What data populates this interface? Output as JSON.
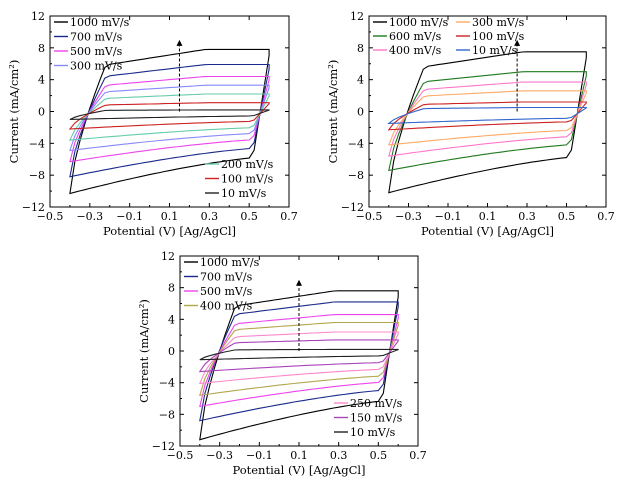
{
  "chart_data": [
    {
      "type": "line",
      "title": "",
      "xlabel": "Potential (V) [Ag/AgCl]",
      "ylabel": "Current (mA/cm²)",
      "xlim": [
        -0.5,
        0.7
      ],
      "ylim": [
        -12,
        12
      ],
      "x_ticks": [
        "−0.5",
        "−0.3",
        "−0.1",
        "0.1",
        "0.3",
        "0.5",
        "0.7"
      ],
      "y_ticks": [
        "12",
        "8",
        "4",
        "0",
        "−4",
        "−8",
        "−12"
      ],
      "grid": false,
      "legend_top": [
        "1000 mV/s",
        "700 mV/s",
        "500 mV/s",
        "300 mV/s"
      ],
      "legend_bottom": [
        "200 mV/s",
        "100 mV/s",
        "10 mV/s"
      ],
      "arrow": {
        "x": 0.15,
        "y_from": 0,
        "y_to": 9
      },
      "series": [
        {
          "name": "1000 mV/s",
          "color": "#000000",
          "ox": 7.8,
          "ored": -10.3
        },
        {
          "name": "700 mV/s",
          "color": "#1a2a8c",
          "ox": 5.9,
          "ored": -8.2
        },
        {
          "name": "500 mV/s",
          "color": "#ee44ee",
          "ox": 4.4,
          "ored": -6.3
        },
        {
          "name": "300 mV/s",
          "color": "#8888ff",
          "ox": 3.3,
          "ored": -4.9
        },
        {
          "name": "200 mV/s",
          "color": "#66ccaa",
          "ox": 2.2,
          "ored": -3.6
        },
        {
          "name": "100 mV/s",
          "color": "#cc2222",
          "ox": 1.1,
          "ored": -2.2
        },
        {
          "name": "10 mV/s",
          "color": "#222222",
          "ox": 0.2,
          "ored": -1.0
        }
      ]
    },
    {
      "type": "line",
      "title": "",
      "xlabel": "Potential (V) [Ag/AgCl]",
      "ylabel": "Current (mA/cm²)",
      "xlim": [
        -0.5,
        0.7
      ],
      "ylim": [
        -12,
        12
      ],
      "x_ticks": [
        "−0.5",
        "−0.3",
        "−0.1",
        "0.1",
        "0.3",
        "0.5",
        "0.7"
      ],
      "y_ticks": [
        "12",
        "8",
        "4",
        "0",
        "−4",
        "−8",
        "−12"
      ],
      "grid": false,
      "legend_top": [
        "1000 mV/s",
        "600 mV/s",
        "400 mV/s",
        "300 mV/s",
        "100 mV/s",
        "10 mV/s"
      ],
      "legend_bottom": [],
      "arrow": {
        "x": 0.25,
        "y_from": 0,
        "y_to": 9
      },
      "series": [
        {
          "name": "1000 mV/s",
          "color": "#000000",
          "ox": 7.5,
          "ored": -10.2
        },
        {
          "name": "600 mV/s",
          "color": "#1f7a1f",
          "ox": 5.0,
          "ored": -7.4
        },
        {
          "name": "400 mV/s",
          "color": "#ff77cc",
          "ox": 3.7,
          "ored": -5.6
        },
        {
          "name": "300 mV/s",
          "color": "#ffaa66",
          "ox": 2.6,
          "ored": -4.2
        },
        {
          "name": "100 mV/s",
          "color": "#cc2222",
          "ox": 1.2,
          "ored": -2.3
        },
        {
          "name": "10 mV/s",
          "color": "#3366cc",
          "ox": 0.5,
          "ored": -1.5
        }
      ]
    },
    {
      "type": "line",
      "title": "",
      "xlabel": "Potential (V) [Ag/AgCl]",
      "ylabel": "Current (mA/cm²)",
      "xlim": [
        -0.5,
        0.7
      ],
      "ylim": [
        -12,
        12
      ],
      "x_ticks": [
        "−0.5",
        "−0.3",
        "−0.1",
        "0.1",
        "0.3",
        "0.5",
        "0.7"
      ],
      "y_ticks": [
        "12",
        "8",
        "4",
        "0",
        "−4",
        "−8",
        "−12"
      ],
      "grid": false,
      "legend_top": [
        "1000 mV/s",
        "700 mV/s",
        "500 mV/s",
        "400 mV/s"
      ],
      "legend_bottom": [
        "250 mV/s",
        "150 mV/s",
        "10 mV/s"
      ],
      "arrow": {
        "x": 0.1,
        "y_from": 0,
        "y_to": 9
      },
      "series": [
        {
          "name": "1000 mV/s",
          "color": "#000000",
          "ox": 7.6,
          "ored": -11.2
        },
        {
          "name": "700 mV/s",
          "color": "#1a2a8c",
          "ox": 6.2,
          "ored": -8.8
        },
        {
          "name": "500 mV/s",
          "color": "#ee44ee",
          "ox": 4.6,
          "ored": -7.0
        },
        {
          "name": "400 mV/s",
          "color": "#b3a64d",
          "ox": 3.6,
          "ored": -5.6
        },
        {
          "name": "250 mV/s",
          "color": "#ff88cc",
          "ox": 2.4,
          "ored": -4.1
        },
        {
          "name": "150 mV/s",
          "color": "#aa44bb",
          "ox": 1.4,
          "ored": -2.6
        },
        {
          "name": "10 mV/s",
          "color": "#222222",
          "ox": 0.2,
          "ored": -1.1
        }
      ]
    }
  ]
}
